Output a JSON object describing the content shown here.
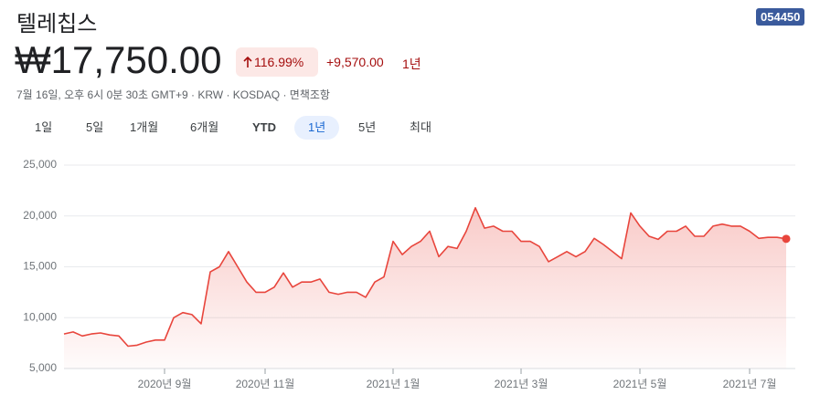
{
  "header": {
    "title": "텔레칩스",
    "ticker": "054450",
    "price": "₩17,750.00",
    "change_percent": "116.99%",
    "change": "+9,570.00",
    "change_period": "1년",
    "info": "7월 16일, 오후 6시 0분 30초 GMT+9 · KRW · KOSDAQ · 면책조항"
  },
  "range_buttons": [
    "1일",
    "5일",
    "1개월",
    "6개월",
    "YTD",
    "1년",
    "5년",
    "최대"
  ],
  "chart_data": {
    "type": "line",
    "color": "#e8453c",
    "categories": [
      null,
      null,
      null,
      null,
      null,
      null,
      null,
      null,
      null,
      null,
      null,
      "2020년 9월",
      null,
      null,
      null,
      null,
      null,
      null,
      null,
      null,
      null,
      null,
      "2020년 11월",
      null,
      null,
      null,
      null,
      null,
      null,
      null,
      null,
      null,
      null,
      null,
      null,
      null,
      "2021년 1월",
      null,
      null,
      null,
      null,
      null,
      null,
      null,
      null,
      null,
      null,
      null,
      null,
      null,
      "2021년 3월",
      null,
      null,
      null,
      null,
      null,
      null,
      null,
      null,
      null,
      null,
      null,
      null,
      "2021년 5월",
      null,
      null,
      null,
      null,
      null,
      null,
      null,
      null,
      null,
      null,
      null,
      "2021년 7월",
      null,
      null,
      null,
      null
    ],
    "values": [
      8400,
      8600,
      8200,
      8400,
      8500,
      8300,
      8200,
      7200,
      7300,
      7600,
      7800,
      7800,
      10000,
      10500,
      10300,
      9400,
      14500,
      15000,
      16500,
      15000,
      13500,
      12500,
      12500,
      13000,
      14400,
      13000,
      13500,
      13500,
      13800,
      12500,
      12300,
      12500,
      12500,
      12000,
      13500,
      14000,
      17500,
      16200,
      17000,
      17500,
      18500,
      16000,
      17000,
      16800,
      18500,
      20800,
      18800,
      19000,
      18500,
      18500,
      17500,
      17500,
      17000,
      15500,
      16000,
      16500,
      16000,
      16500,
      17800,
      17200,
      16500,
      15800,
      20300,
      19000,
      18000,
      17700,
      18500,
      18500,
      19000,
      18000,
      18000,
      19000,
      19200,
      19000,
      19000,
      18500,
      17800,
      17900,
      17900,
      17750
    ],
    "ylim": [
      5000,
      25000
    ],
    "yticks": [
      {
        "value": 5000,
        "label": "5,000"
      },
      {
        "value": 10000,
        "label": "10,000"
      },
      {
        "value": 15000,
        "label": "15,000"
      },
      {
        "value": 20000,
        "label": "20,000"
      },
      {
        "value": 25000,
        "label": "25,000"
      }
    ],
    "grid": true
  }
}
